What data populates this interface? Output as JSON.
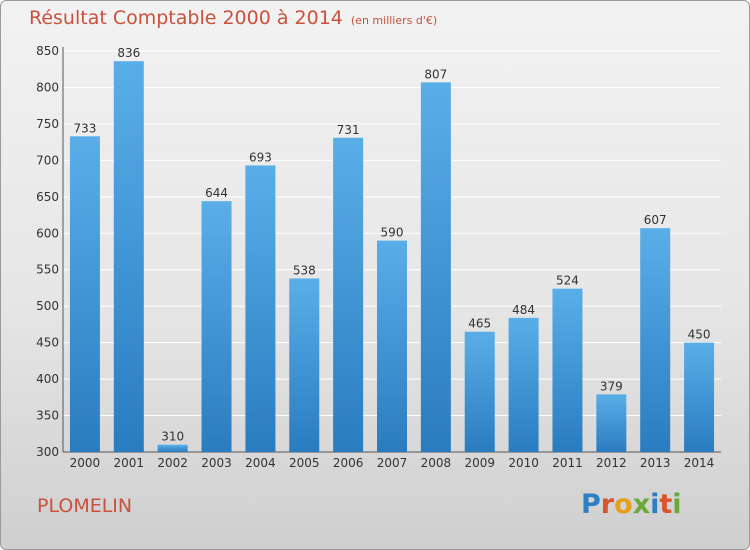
{
  "header": {
    "title": "Résultat Comptable 2000 à 2014",
    "unit": "(en milliers d'€)"
  },
  "footer": {
    "commune": "PLOMELIN",
    "logo": [
      "P",
      "r",
      "o",
      "x",
      "i",
      "t",
      "i"
    ]
  },
  "colors": {
    "bar_light": "#5aaee8",
    "bar_dark": "#2a7cc0",
    "title": "#c8523e",
    "grid": "#ffffff"
  },
  "chart_data": {
    "type": "bar",
    "categories": [
      "2000",
      "2001",
      "2002",
      "2003",
      "2004",
      "2005",
      "2006",
      "2007",
      "2008",
      "2009",
      "2010",
      "2011",
      "2012",
      "2013",
      "2014"
    ],
    "values": [
      733,
      836,
      310,
      644,
      693,
      538,
      731,
      590,
      807,
      465,
      484,
      524,
      379,
      607,
      450
    ],
    "ylim": [
      300,
      850
    ],
    "yticks": [
      300,
      350,
      400,
      450,
      500,
      550,
      600,
      650,
      700,
      750,
      800,
      850
    ],
    "grid": true,
    "data_labels": true
  }
}
